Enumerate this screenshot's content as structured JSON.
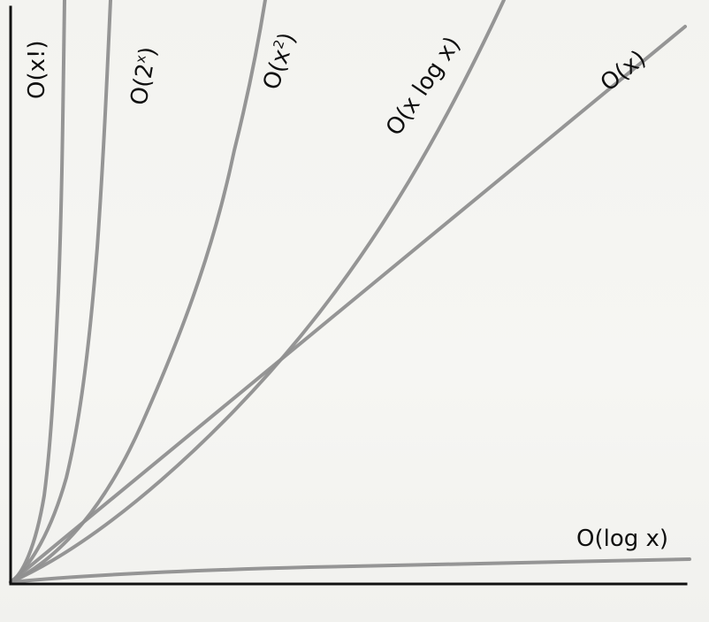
{
  "chart_data": {
    "type": "line",
    "title": "",
    "xlabel": "",
    "ylabel": "",
    "grid": false,
    "legend": "none",
    "series": [
      {
        "name": "O(x!)",
        "color": "#8f8f8f"
      },
      {
        "name": "O(2^x)",
        "color": "#8f8f8f"
      },
      {
        "name": "O(x^2)",
        "color": "#8f8f8f"
      },
      {
        "name": "O(x log x)",
        "color": "#8f8f8f"
      },
      {
        "name": "O(x)",
        "color": "#8f8f8f"
      },
      {
        "name": "O(log x)",
        "color": "#8f8f8f"
      }
    ]
  },
  "labels": {
    "factorial": {
      "base": "O(x!)"
    },
    "exponential": {
      "open": "O(2",
      "sup": "x",
      "close": ")"
    },
    "quadratic": {
      "open": "O(x",
      "sup": "2",
      "close": ")"
    },
    "linearithmic": {
      "text": "O(x log x)"
    },
    "linear": {
      "text": "O(x)"
    },
    "logarithmic": {
      "text": "O(log x)"
    }
  },
  "colors": {
    "curve": "#8f8f8f",
    "axis": "#111111",
    "background": "#f4f4f1"
  }
}
